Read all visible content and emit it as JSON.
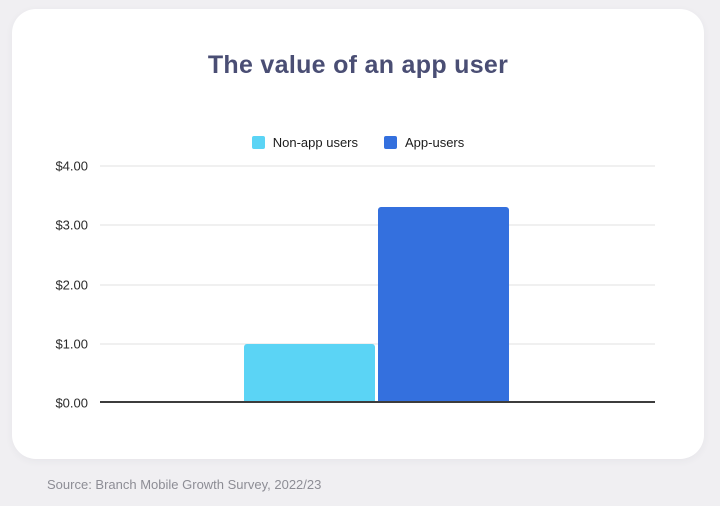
{
  "page": {
    "background_color": "#f0eff2",
    "card_color": "#ffffff"
  },
  "chart": {
    "title": "The value of an app user",
    "title_color": "#4a4e74"
  },
  "chart_data": {
    "type": "bar",
    "title": "The value of an app user",
    "categories": [
      ""
    ],
    "series": [
      {
        "name": "Non-app users",
        "color": "#5bd4f5",
        "values": [
          1.0
        ]
      },
      {
        "name": "App-users",
        "color": "#3470de",
        "values": [
          3.3
        ]
      }
    ],
    "xlabel": "",
    "ylabel": "",
    "ylim": [
      0,
      4
    ],
    "yticks": [
      {
        "value": 0,
        "label": "$0.00"
      },
      {
        "value": 1,
        "label": "$1.00"
      },
      {
        "value": 2,
        "label": "$2.00"
      },
      {
        "value": 3,
        "label": "$3.00"
      },
      {
        "value": 4,
        "label": "$4.00"
      }
    ],
    "grid": true,
    "legend_position": "top",
    "grid_color": "#e2e2e2",
    "baseline_color": "#3c3c3c",
    "tick_label_color": "#2b2b2b",
    "legend_text_color": "#1c1c1c"
  },
  "source": {
    "text": "Source: Branch Mobile Growth Survey, 2022/23"
  }
}
